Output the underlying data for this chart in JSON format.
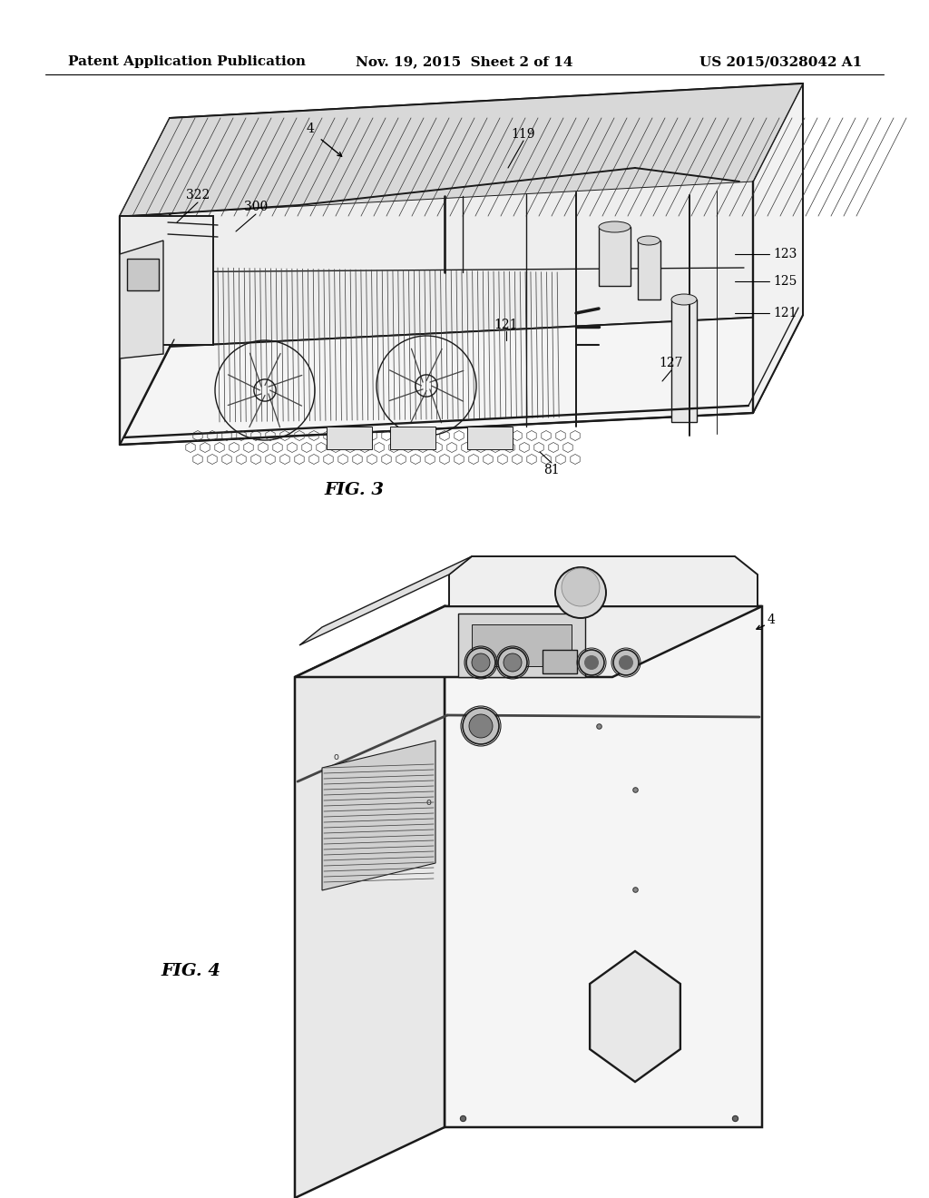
{
  "background_color": "#ffffff",
  "header_left": "Patent Application Publication",
  "header_center": "Nov. 19, 2015  Sheet 2 of 14",
  "header_right": "US 2015/0328042 A1",
  "line_color": "#1a1a1a",
  "lw_main": 1.4,
  "lw_thin": 0.7,
  "lw_med": 1.0,
  "ann_fs": 10,
  "label_fs": 14,
  "header_fs": 11
}
